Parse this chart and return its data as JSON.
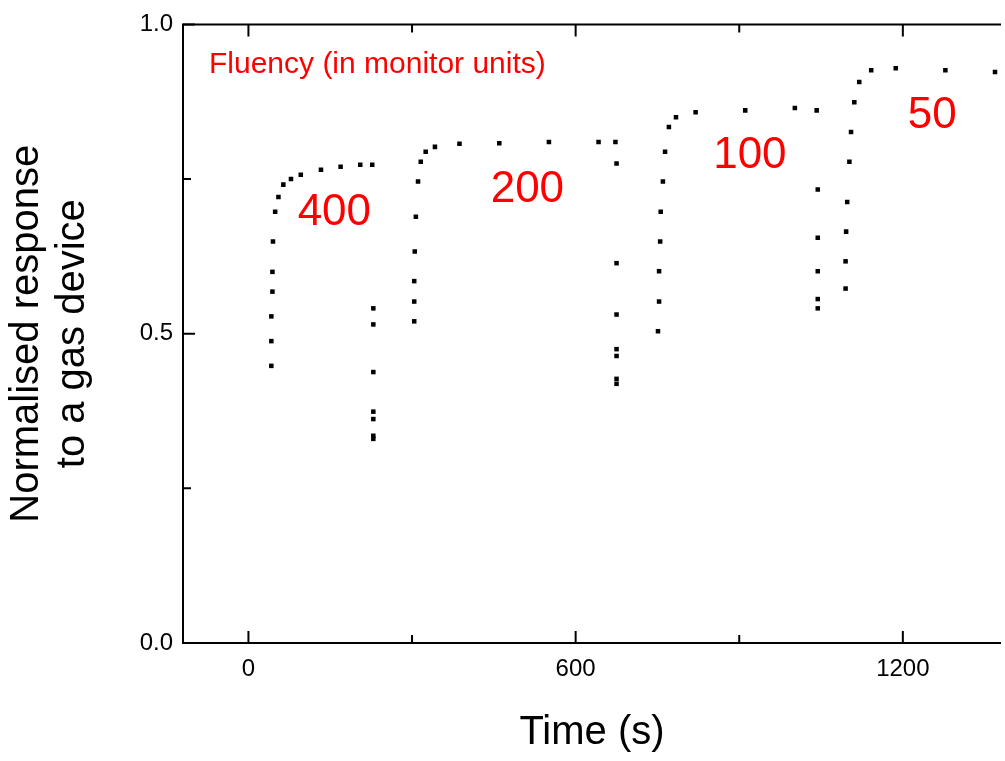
{
  "chart_data": {
    "type": "scatter",
    "xlabel": "Time (s)",
    "ylabel": "Normalised response\nto a gas device",
    "xlim": [
      -120,
      1380
    ],
    "ylim": [
      0,
      1
    ],
    "xticks": [
      0,
      {
        "value": 300,
        "label": null
      },
      600,
      {
        "value": 900,
        "label": null
      },
      1200
    ],
    "yticks": [
      {
        "value": 0,
        "label": "0.0"
      },
      {
        "value": 0.25,
        "label": null
      },
      {
        "value": 0.5,
        "label": "0.5"
      },
      {
        "value": 0.75,
        "label": null
      },
      {
        "value": 1,
        "label": "1.0"
      }
    ],
    "marker": "square",
    "grid": false,
    "legend": false,
    "series": [
      {
        "color": "#000000",
        "x": [
          42,
          42,
          42,
          44,
          44,
          45,
          49,
          55,
          64,
          78,
          96,
          133,
          169,
          205,
          227,
          229,
          229,
          229,
          229,
          229,
          229,
          229
        ],
        "values": [
          0.448,
          0.488,
          0.528,
          0.568,
          0.6,
          0.649,
          0.697,
          0.721,
          0.741,
          0.75,
          0.757,
          0.765,
          0.77,
          0.773,
          0.773,
          0.541,
          0.515,
          0.438,
          0.374,
          0.362,
          0.335,
          0.33
        ]
      },
      {
        "color": "#000000",
        "x": [
          304,
          304,
          304,
          305,
          307,
          311,
          316,
          325,
          342,
          387,
          460,
          551,
          642,
          673,
          675,
          675,
          675,
          675,
          675,
          675,
          675
        ],
        "values": [
          0.52,
          0.552,
          0.585,
          0.633,
          0.689,
          0.746,
          0.778,
          0.794,
          0.802,
          0.807,
          0.808,
          0.81,
          0.81,
          0.81,
          0.775,
          0.614,
          0.531,
          0.475,
          0.464,
          0.427,
          0.419
        ]
      },
      {
        "color": "#000000",
        "x": [
          751,
          753,
          753,
          755,
          756,
          760,
          764,
          771,
          784,
          820,
          911,
          1002,
          1042,
          1044,
          1044,
          1044,
          1044,
          1044
        ],
        "values": [
          0.504,
          0.552,
          0.601,
          0.649,
          0.697,
          0.746,
          0.794,
          0.834,
          0.85,
          0.858,
          0.861,
          0.865,
          0.861,
          0.733,
          0.655,
          0.601,
          0.556,
          0.541
        ]
      },
      {
        "color": "#000000",
        "x": [
          1095,
          1095,
          1096,
          1098,
          1102,
          1105,
          1111,
          1120,
          1142,
          1187,
          1278,
          1369
        ],
        "values": [
          0.573,
          0.617,
          0.665,
          0.713,
          0.778,
          0.826,
          0.874,
          0.907,
          0.926,
          0.929,
          0.926,
          0.923
        ]
      }
    ],
    "annotations": [
      "Fluency (in monitor units)",
      "400",
      "200",
      "100",
      "50"
    ]
  }
}
